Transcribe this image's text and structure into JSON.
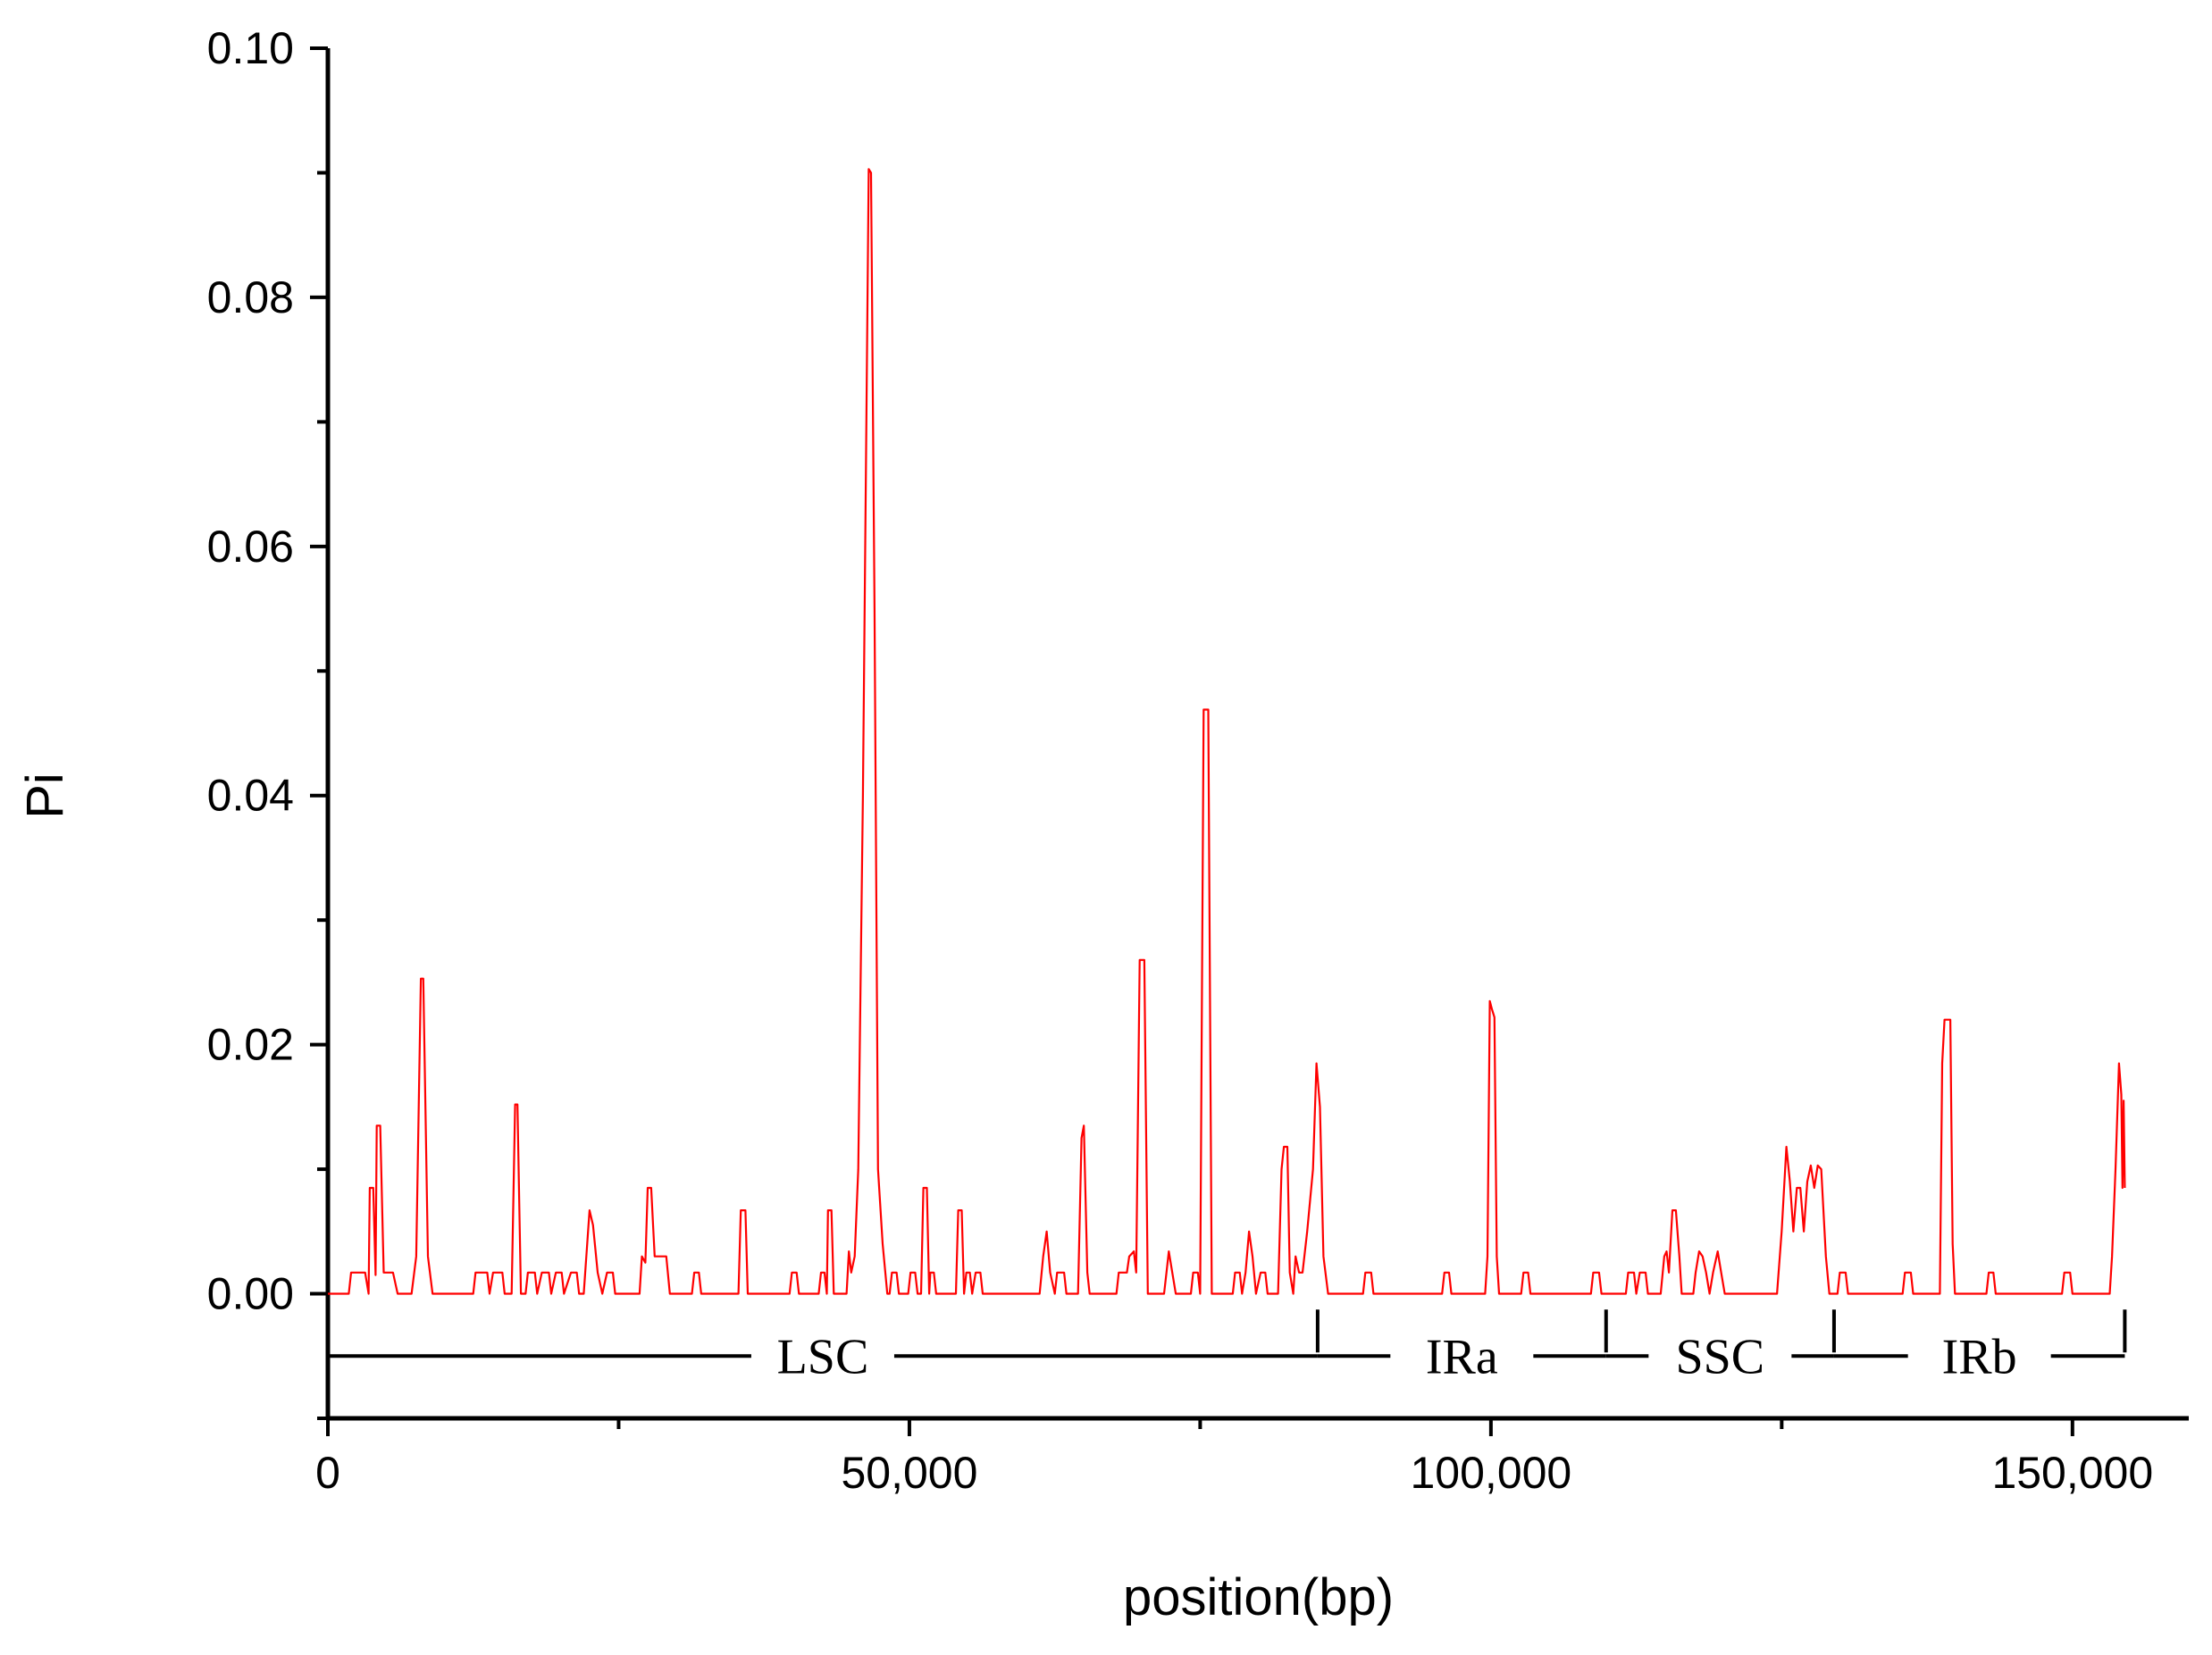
{
  "chart_data": {
    "type": "line",
    "xlabel": "position(bp)",
    "ylabel": "Pi",
    "xlim": [
      0,
      160000
    ],
    "ylim": [
      -0.01,
      0.1
    ],
    "x_ticks": [
      0,
      50000,
      100000,
      150000
    ],
    "x_tick_labels": [
      "0",
      "50,000",
      "100,000",
      "150,000"
    ],
    "y_ticks": [
      0.0,
      0.02,
      0.04,
      0.06,
      0.08,
      0.1
    ],
    "y_tick_labels": [
      "0.00",
      "0.02",
      "0.04",
      "0.06",
      "0.08",
      "0.10"
    ],
    "grid": false,
    "colors": {
      "series": "#ff0000",
      "axes": "#000000"
    },
    "series": [
      {
        "color": "#ff0000",
        "points": [
          [
            0,
            0
          ],
          [
            1800,
            0
          ],
          [
            2000,
            0.0017
          ],
          [
            3200,
            0.0017
          ],
          [
            3500,
            0
          ],
          [
            3600,
            0.0085
          ],
          [
            3900,
            0.0085
          ],
          [
            4100,
            0.0015
          ],
          [
            4200,
            0.0135
          ],
          [
            4500,
            0.0135
          ],
          [
            4800,
            0.0017
          ],
          [
            5600,
            0.0017
          ],
          [
            6000,
            0
          ],
          [
            7200,
            0
          ],
          [
            7600,
            0.003
          ],
          [
            8000,
            0.0253
          ],
          [
            8200,
            0.0253
          ],
          [
            8600,
            0.003
          ],
          [
            9000,
            0
          ],
          [
            12500,
            0
          ],
          [
            12700,
            0.0017
          ],
          [
            13700,
            0.0017
          ],
          [
            13900,
            0
          ],
          [
            14200,
            0.0017
          ],
          [
            15000,
            0.0017
          ],
          [
            15200,
            0
          ],
          [
            15800,
            0
          ],
          [
            16100,
            0.0152
          ],
          [
            16300,
            0.0152
          ],
          [
            16600,
            0
          ],
          [
            17000,
            0
          ],
          [
            17200,
            0.0017
          ],
          [
            17800,
            0.0017
          ],
          [
            18000,
            0
          ],
          [
            18400,
            0.0017
          ],
          [
            19000,
            0.0017
          ],
          [
            19200,
            0
          ],
          [
            19600,
            0.0017
          ],
          [
            20100,
            0.0017
          ],
          [
            20300,
            0
          ],
          [
            20900,
            0.0017
          ],
          [
            21400,
            0.0017
          ],
          [
            21600,
            0
          ],
          [
            22000,
            0
          ],
          [
            22500,
            0.0067
          ],
          [
            22800,
            0.0055
          ],
          [
            23200,
            0.0017
          ],
          [
            23600,
            0
          ],
          [
            24000,
            0.0017
          ],
          [
            24500,
            0.0017
          ],
          [
            24700,
            0
          ],
          [
            26800,
            0
          ],
          [
            27000,
            0.003
          ],
          [
            27300,
            0.0025
          ],
          [
            27500,
            0.0085
          ],
          [
            27800,
            0.0085
          ],
          [
            28100,
            0.003
          ],
          [
            29100,
            0.003
          ],
          [
            29400,
            0
          ],
          [
            31300,
            0
          ],
          [
            31500,
            0.0017
          ],
          [
            31900,
            0.0017
          ],
          [
            32100,
            0
          ],
          [
            35300,
            0
          ],
          [
            35500,
            0.0067
          ],
          [
            35900,
            0.0067
          ],
          [
            36100,
            0
          ],
          [
            39700,
            0
          ],
          [
            39900,
            0.0017
          ],
          [
            40300,
            0.0017
          ],
          [
            40500,
            0
          ],
          [
            42200,
            0
          ],
          [
            42400,
            0.0017
          ],
          [
            42700,
            0.0017
          ],
          [
            42900,
            0
          ],
          [
            43000,
            0.0067
          ],
          [
            43300,
            0.0067
          ],
          [
            43500,
            0
          ],
          [
            44600,
            0
          ],
          [
            44800,
            0.0034
          ],
          [
            45000,
            0.0017
          ],
          [
            45300,
            0.003
          ],
          [
            45600,
            0.01
          ],
          [
            46000,
            0.04
          ],
          [
            46500,
            0.0903
          ],
          [
            46700,
            0.09
          ],
          [
            47000,
            0.055
          ],
          [
            47300,
            0.01
          ],
          [
            47700,
            0.004
          ],
          [
            47900,
            0.002
          ],
          [
            48100,
            0
          ],
          [
            48300,
            0
          ],
          [
            48500,
            0.0017
          ],
          [
            48900,
            0.0017
          ],
          [
            49100,
            0
          ],
          [
            49900,
            0
          ],
          [
            50100,
            0.0017
          ],
          [
            50500,
            0.0017
          ],
          [
            50700,
            0
          ],
          [
            51000,
            0
          ],
          [
            51200,
            0.0085
          ],
          [
            51500,
            0.0085
          ],
          [
            51700,
            0
          ],
          [
            51800,
            0.0017
          ],
          [
            52100,
            0.0017
          ],
          [
            52300,
            0
          ],
          [
            54000,
            0
          ],
          [
            54200,
            0.0067
          ],
          [
            54500,
            0.0067
          ],
          [
            54700,
            0
          ],
          [
            54900,
            0.0017
          ],
          [
            55200,
            0.0017
          ],
          [
            55400,
            0
          ],
          [
            55700,
            0.0017
          ],
          [
            56100,
            0.0017
          ],
          [
            56300,
            0
          ],
          [
            61200,
            0
          ],
          [
            61500,
            0.003
          ],
          [
            61800,
            0.005
          ],
          [
            62100,
            0.0017
          ],
          [
            62500,
            0
          ],
          [
            62700,
            0.0017
          ],
          [
            63300,
            0.0017
          ],
          [
            63500,
            0
          ],
          [
            64500,
            0
          ],
          [
            64800,
            0.0125
          ],
          [
            65000,
            0.0135
          ],
          [
            65300,
            0.0017
          ],
          [
            65500,
            0
          ],
          [
            67800,
            0
          ],
          [
            68000,
            0.0017
          ],
          [
            68700,
            0.0017
          ],
          [
            68900,
            0.003
          ],
          [
            69300,
            0.0034
          ],
          [
            69500,
            0.0017
          ],
          [
            69800,
            0.0268
          ],
          [
            70200,
            0.0268
          ],
          [
            70500,
            0
          ],
          [
            71900,
            0
          ],
          [
            72100,
            0.0017
          ],
          [
            72300,
            0.0034
          ],
          [
            72600,
            0.0017
          ],
          [
            72900,
            0
          ],
          [
            74200,
            0
          ],
          [
            74400,
            0.0017
          ],
          [
            74800,
            0.0017
          ],
          [
            75000,
            0
          ],
          [
            75300,
            0.0469
          ],
          [
            75700,
            0.0469
          ],
          [
            76000,
            0
          ],
          [
            77800,
            0
          ],
          [
            78000,
            0.0017
          ],
          [
            78400,
            0.0017
          ],
          [
            78600,
            0
          ],
          [
            78900,
            0.0017
          ],
          [
            79200,
            0.005
          ],
          [
            79500,
            0.003
          ],
          [
            79800,
            0
          ],
          [
            80200,
            0.0017
          ],
          [
            80600,
            0.0017
          ],
          [
            80800,
            0
          ],
          [
            81700,
            0
          ],
          [
            82000,
            0.01
          ],
          [
            82200,
            0.0118
          ],
          [
            82500,
            0.0118
          ],
          [
            82700,
            0.0017
          ],
          [
            83000,
            0
          ],
          [
            83200,
            0.003
          ],
          [
            83500,
            0.0017
          ],
          [
            83800,
            0.0017
          ],
          [
            84200,
            0.005
          ],
          [
            84700,
            0.01
          ],
          [
            85000,
            0.0185
          ],
          [
            85300,
            0.015
          ],
          [
            85600,
            0.003
          ],
          [
            86000,
            0
          ],
          [
            89000,
            0
          ],
          [
            89200,
            0.0017
          ],
          [
            89700,
            0.0017
          ],
          [
            89900,
            0
          ],
          [
            95800,
            0
          ],
          [
            96000,
            0.0017
          ],
          [
            96400,
            0.0017
          ],
          [
            96600,
            0
          ],
          [
            99500,
            0
          ],
          [
            99700,
            0.003
          ],
          [
            99900,
            0.0235
          ],
          [
            100100,
            0.0228
          ],
          [
            100300,
            0.0222
          ],
          [
            100500,
            0.003
          ],
          [
            100700,
            0
          ],
          [
            102600,
            0
          ],
          [
            102800,
            0.0017
          ],
          [
            103200,
            0.0017
          ],
          [
            103400,
            0
          ],
          [
            108600,
            0
          ],
          [
            108800,
            0.0017
          ],
          [
            109300,
            0.0017
          ],
          [
            109500,
            0
          ],
          [
            111600,
            0
          ],
          [
            111800,
            0.0017
          ],
          [
            112300,
            0.0017
          ],
          [
            112500,
            0
          ],
          [
            112800,
            0.0017
          ],
          [
            113300,
            0.0017
          ],
          [
            113500,
            0
          ],
          [
            114600,
            0
          ],
          [
            114900,
            0.003
          ],
          [
            115100,
            0.0034
          ],
          [
            115300,
            0.0017
          ],
          [
            115600,
            0.0067
          ],
          [
            115900,
            0.0067
          ],
          [
            116200,
            0.003
          ],
          [
            116400,
            0
          ],
          [
            117400,
            0
          ],
          [
            117600,
            0.0017
          ],
          [
            117900,
            0.0034
          ],
          [
            118200,
            0.003
          ],
          [
            118500,
            0.0017
          ],
          [
            118800,
            0
          ],
          [
            119100,
            0.0017
          ],
          [
            119500,
            0.0034
          ],
          [
            119800,
            0.0017
          ],
          [
            120100,
            0
          ],
          [
            124600,
            0
          ],
          [
            125000,
            0.005
          ],
          [
            125400,
            0.0118
          ],
          [
            125700,
            0.009
          ],
          [
            126000,
            0.005
          ],
          [
            126300,
            0.0085
          ],
          [
            126600,
            0.0085
          ],
          [
            126900,
            0.005
          ],
          [
            127200,
            0.009
          ],
          [
            127500,
            0.0103
          ],
          [
            127800,
            0.0085
          ],
          [
            128100,
            0.0103
          ],
          [
            128400,
            0.01
          ],
          [
            128800,
            0.003
          ],
          [
            129100,
            0
          ],
          [
            129800,
            0
          ],
          [
            130000,
            0.0017
          ],
          [
            130500,
            0.0017
          ],
          [
            130700,
            0
          ],
          [
            135400,
            0
          ],
          [
            135600,
            0.0017
          ],
          [
            136100,
            0.0017
          ],
          [
            136300,
            0
          ],
          [
            138600,
            0
          ],
          [
            138800,
            0.0185
          ],
          [
            139000,
            0.022
          ],
          [
            139500,
            0.022
          ],
          [
            139700,
            0.004
          ],
          [
            139900,
            0
          ],
          [
            142600,
            0
          ],
          [
            142800,
            0.0017
          ],
          [
            143200,
            0.0017
          ],
          [
            143400,
            0
          ],
          [
            149100,
            0
          ],
          [
            149300,
            0.0017
          ],
          [
            149800,
            0.0017
          ],
          [
            150000,
            0
          ],
          [
            153200,
            0
          ],
          [
            153400,
            0.003
          ],
          [
            153700,
            0.01
          ],
          [
            154000,
            0.0185
          ],
          [
            154200,
            0.016
          ],
          [
            154300,
            0.0085
          ],
          [
            154400,
            0.0155
          ],
          [
            154500,
            0.0085
          ]
        ]
      }
    ],
    "regions": [
      {
        "label": "LSC",
        "start": 0,
        "end": 85100
      },
      {
        "label": "IRa",
        "start": 85100,
        "end": 109900
      },
      {
        "label": "SSC",
        "start": 109900,
        "end": 129500
      },
      {
        "label": "IRb",
        "start": 129500,
        "end": 154500
      }
    ],
    "region_bar_y": -0.005
  }
}
